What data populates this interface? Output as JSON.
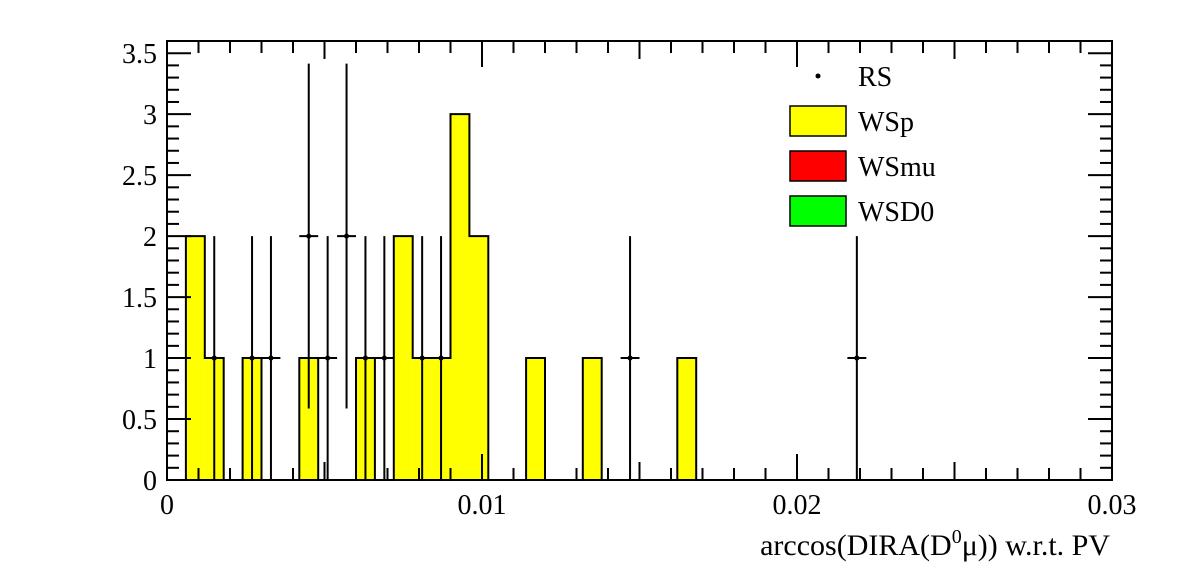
{
  "chart_data": {
    "type": "bar",
    "xlabel": {
      "pre": "arccos(DIRA(D",
      "sup": "0",
      "mu": "μ",
      "post": ")) w.r.t. PV"
    },
    "xlim": [
      0,
      0.03
    ],
    "ylim": [
      0,
      3.6
    ],
    "bin_width": 0.0006,
    "x_ticks": [
      {
        "value": 0,
        "label": "0"
      },
      {
        "value": 0.01,
        "label": "0.01"
      },
      {
        "value": 0.02,
        "label": "0.02"
      },
      {
        "value": 0.03,
        "label": "0.03"
      }
    ],
    "y_ticks": [
      {
        "value": 0,
        "label": "0"
      },
      {
        "value": 0.5,
        "label": "0.5"
      },
      {
        "value": 1,
        "label": "1"
      },
      {
        "value": 1.5,
        "label": "1.5"
      },
      {
        "value": 2,
        "label": "2"
      },
      {
        "value": 2.5,
        "label": "2.5"
      },
      {
        "value": 3,
        "label": "3"
      },
      {
        "value": 3.5,
        "label": "3.5"
      }
    ],
    "series": [
      {
        "name": "WSp",
        "kind": "histogram",
        "color": "#ffff00",
        "bins": [
          {
            "x": 0.0003,
            "y": 0
          },
          {
            "x": 0.0009,
            "y": 2
          },
          {
            "x": 0.0015,
            "y": 1
          },
          {
            "x": 0.0021,
            "y": 0
          },
          {
            "x": 0.0027,
            "y": 1
          },
          {
            "x": 0.0033,
            "y": 0
          },
          {
            "x": 0.0039,
            "y": 0
          },
          {
            "x": 0.0045,
            "y": 1
          },
          {
            "x": 0.0051,
            "y": 0
          },
          {
            "x": 0.0057,
            "y": 0
          },
          {
            "x": 0.0063,
            "y": 1
          },
          {
            "x": 0.0069,
            "y": 0
          },
          {
            "x": 0.0075,
            "y": 2
          },
          {
            "x": 0.0081,
            "y": 1
          },
          {
            "x": 0.0087,
            "y": 1
          },
          {
            "x": 0.0093,
            "y": 3
          },
          {
            "x": 0.0099,
            "y": 2
          },
          {
            "x": 0.0105,
            "y": 0
          },
          {
            "x": 0.0111,
            "y": 0
          },
          {
            "x": 0.0117,
            "y": 1
          },
          {
            "x": 0.0123,
            "y": 0
          },
          {
            "x": 0.0129,
            "y": 0
          },
          {
            "x": 0.0135,
            "y": 1
          },
          {
            "x": 0.0141,
            "y": 0
          },
          {
            "x": 0.0147,
            "y": 0
          },
          {
            "x": 0.0153,
            "y": 0
          },
          {
            "x": 0.0159,
            "y": 0
          },
          {
            "x": 0.0165,
            "y": 1
          }
        ]
      },
      {
        "name": "WSmu",
        "kind": "histogram",
        "color": "#ff0000",
        "bins": []
      },
      {
        "name": "WSD0",
        "kind": "histogram",
        "color": "#00ff00",
        "bins": []
      },
      {
        "name": "RS",
        "kind": "points",
        "color": "#000000",
        "points": [
          {
            "x": 0.0015,
            "y": 1,
            "err": 1
          },
          {
            "x": 0.0027,
            "y": 1,
            "err": 1
          },
          {
            "x": 0.0033,
            "y": 1,
            "err": 1
          },
          {
            "x": 0.0045,
            "y": 2,
            "err": 1.414
          },
          {
            "x": 0.0051,
            "y": 1,
            "err": 1
          },
          {
            "x": 0.0057,
            "y": 2,
            "err": 1.414
          },
          {
            "x": 0.0063,
            "y": 1,
            "err": 1
          },
          {
            "x": 0.0069,
            "y": 1,
            "err": 1
          },
          {
            "x": 0.0081,
            "y": 1,
            "err": 1
          },
          {
            "x": 0.0087,
            "y": 1,
            "err": 1
          },
          {
            "x": 0.0147,
            "y": 1,
            "err": 1
          },
          {
            "x": 0.0219,
            "y": 1,
            "err": 1
          }
        ]
      }
    ],
    "legend": {
      "position": "top-right",
      "entries": [
        {
          "label": "RS",
          "style": "marker",
          "color": "#000000"
        },
        {
          "label": "WSp",
          "style": "fill",
          "color": "#ffff00"
        },
        {
          "label": "WSmu",
          "style": "fill",
          "color": "#ff0000"
        },
        {
          "label": "WSD0",
          "style": "fill",
          "color": "#00ff00"
        }
      ]
    },
    "grid": false
  }
}
